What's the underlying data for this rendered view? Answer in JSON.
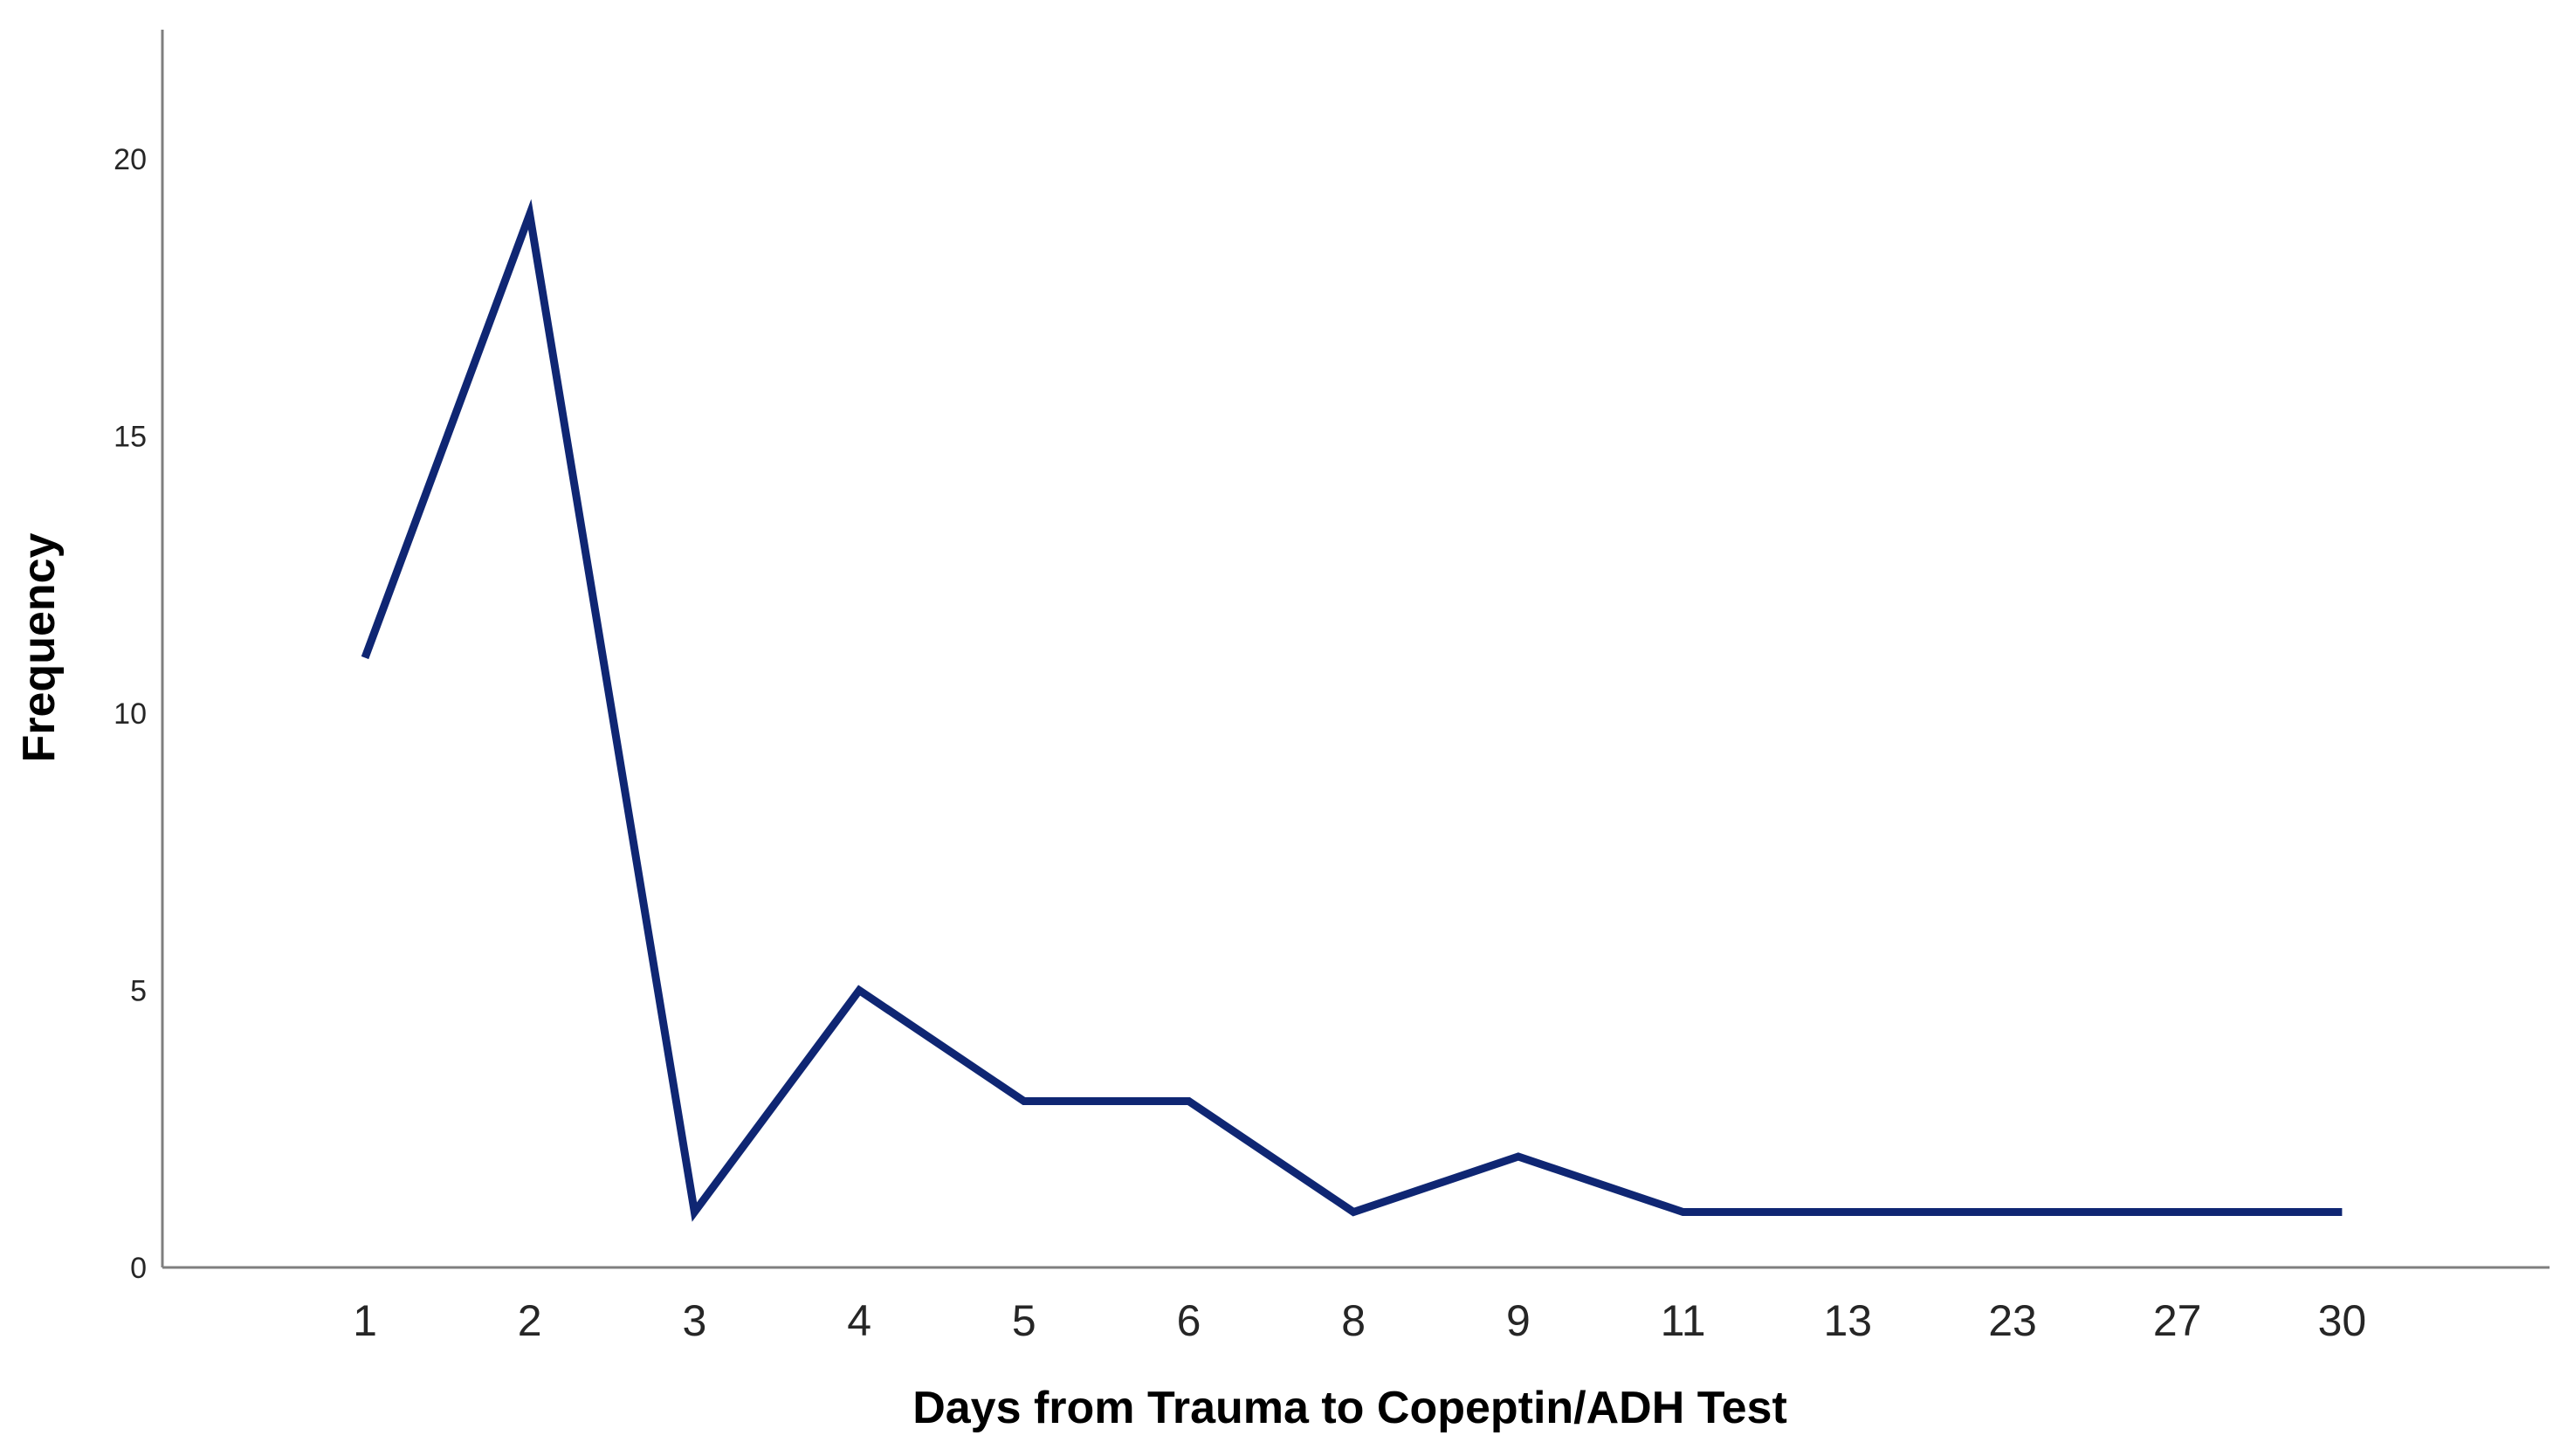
{
  "chart_data": {
    "type": "line",
    "title": "",
    "xlabel": "Days from Trauma to Copeptin/ADH Test",
    "ylabel": "Frequency",
    "categories": [
      "1",
      "2",
      "3",
      "4",
      "5",
      "6",
      "8",
      "9",
      "11",
      "13",
      "23",
      "27",
      "30"
    ],
    "series": [
      {
        "values": [
          11,
          19,
          1,
          5,
          3,
          3,
          1,
          2,
          1,
          1,
          1,
          1,
          1
        ],
        "color": "#0f2673"
      }
    ],
    "ylim": [
      0,
      22
    ],
    "yticks": [
      "0",
      "5",
      "10",
      "15",
      "20"
    ],
    "grid": false,
    "legend": "none"
  }
}
